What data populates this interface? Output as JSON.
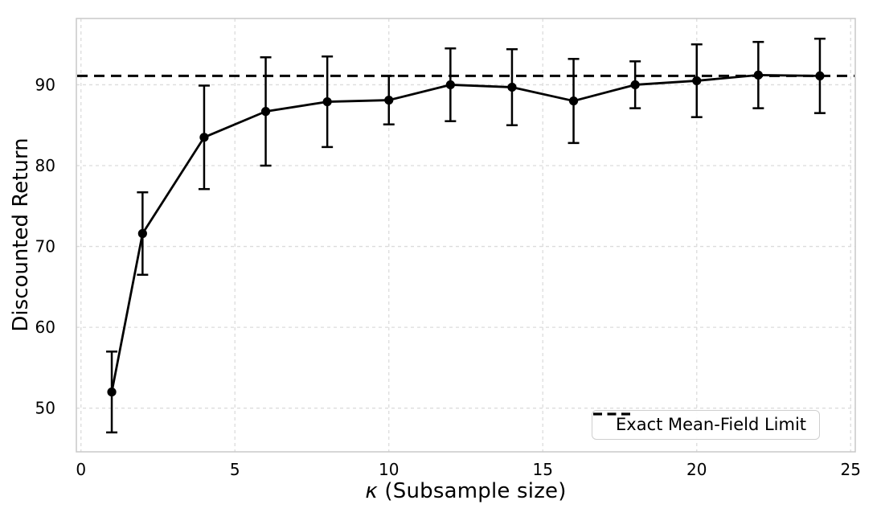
{
  "chart_data": {
    "type": "line",
    "xlabel_symbol": "κ",
    "xlabel_rest": " (Subsample size)",
    "ylabel": "Discounted Return",
    "x": [
      1,
      2,
      4,
      6,
      8,
      10,
      12,
      14,
      16,
      18,
      20,
      22,
      24
    ],
    "y": [
      52.0,
      71.6,
      83.5,
      86.7,
      87.9,
      88.1,
      90.0,
      89.7,
      88.0,
      90.0,
      90.5,
      91.2,
      91.1
    ],
    "yerr": [
      5.0,
      5.1,
      6.4,
      6.7,
      5.6,
      3.0,
      4.5,
      4.7,
      5.2,
      2.9,
      4.5,
      4.1,
      4.6
    ],
    "baseline": {
      "label": "Exact Mean-Field Limit",
      "value": 91.1,
      "style": "dashed"
    },
    "xticks": [
      0,
      5,
      10,
      15,
      20,
      25
    ],
    "yticks": [
      50,
      60,
      70,
      80,
      90
    ],
    "xlim": [
      -0.15,
      25.15
    ],
    "ylim": [
      44.6,
      98.2
    ],
    "grid": true,
    "legend_position": "lower right",
    "colors": {
      "series": "#000000",
      "grid": "#dcdcdc",
      "spine": "#c9c9c9",
      "text": "#000000",
      "background": "#ffffff"
    }
  }
}
